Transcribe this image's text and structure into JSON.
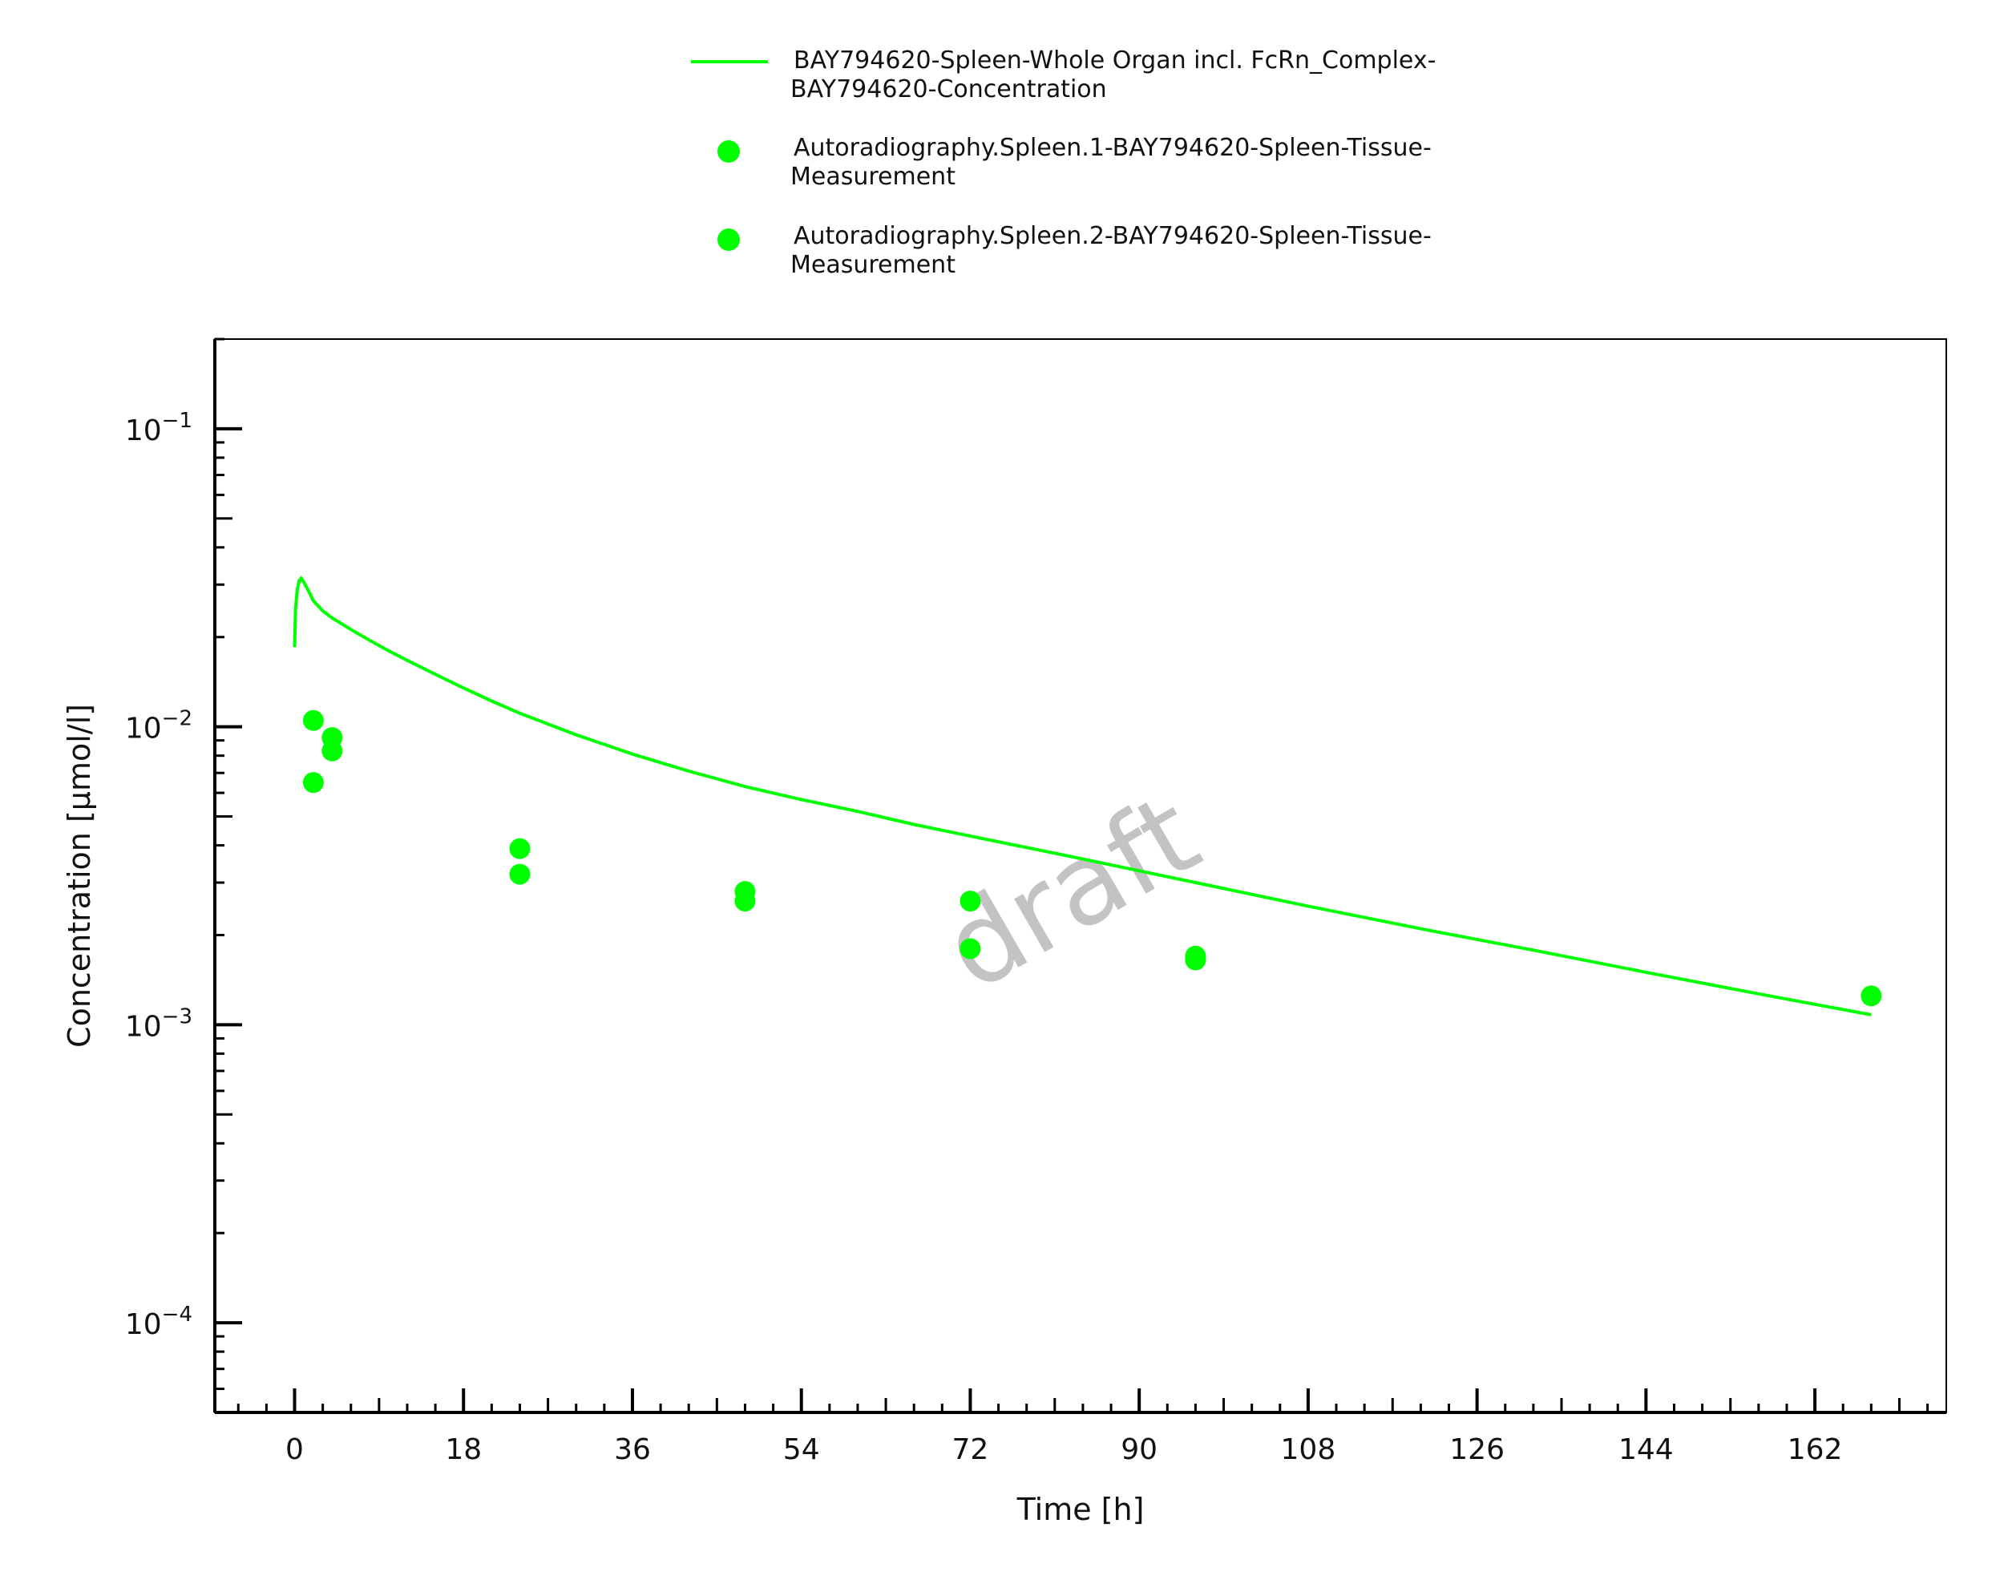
{
  "chart_data": {
    "type": "scatter",
    "xlabel": "Time [h]",
    "ylabel": "Concentration [µmol/l]",
    "xlim": [
      -8.5,
      176
    ],
    "ylim": [
      5e-05,
      0.2
    ],
    "yscale": "log",
    "grid": false,
    "legend_position": "top-center",
    "watermark": "draft",
    "x_ticks": [
      0,
      18,
      36,
      54,
      72,
      90,
      108,
      126,
      144,
      162
    ],
    "y_ticks": [
      {
        "value": 0.1,
        "base": "10",
        "exp": "−1"
      },
      {
        "value": 0.01,
        "base": "10",
        "exp": "−2"
      },
      {
        "value": 0.001,
        "base": "10",
        "exp": "−3"
      },
      {
        "value": 0.0001,
        "base": "10",
        "exp": "−4"
      }
    ],
    "series": [
      {
        "name": "BAY794620-Spleen-Whole Organ incl. FcRn_Complex-BAY794620-Concentration",
        "legend_lines": [
          "BAY794620-Spleen-Whole Organ incl. FcRn_Complex-",
          "BAY794620-Concentration"
        ],
        "kind": "line",
        "color": "#00ff00",
        "x": [
          0,
          0.1,
          0.3,
          0.5,
          0.7,
          1,
          1.5,
          2,
          3,
          4,
          6,
          8,
          10,
          12,
          15,
          18,
          21,
          24,
          30,
          36,
          42,
          48,
          54,
          60,
          66,
          72,
          84,
          96,
          108,
          120,
          132,
          144,
          156,
          168
        ],
        "y": [
          0.0185,
          0.025,
          0.029,
          0.031,
          0.0315,
          0.0305,
          0.0285,
          0.0265,
          0.0245,
          0.0232,
          0.0212,
          0.0195,
          0.018,
          0.0167,
          0.015,
          0.0135,
          0.0122,
          0.0111,
          0.0094,
          0.0081,
          0.0071,
          0.0063,
          0.0057,
          0.0052,
          0.0047,
          0.0043,
          0.0036,
          0.003,
          0.0025,
          0.0021,
          0.00178,
          0.0015,
          0.00127,
          0.00108
        ]
      },
      {
        "name": "Autoradiography.Spleen.1-BAY794620-Spleen-Tissue-Measurement",
        "legend_lines": [
          "Autoradiography.Spleen.1-BAY794620-Spleen-Tissue-",
          "Measurement"
        ],
        "kind": "scatter",
        "color": "#00ff00",
        "x": [
          2,
          4,
          24,
          48,
          72,
          96,
          168
        ],
        "y": [
          0.0105,
          0.0092,
          0.0039,
          0.0028,
          0.0026,
          0.0017,
          0.00125
        ]
      },
      {
        "name": "Autoradiography.Spleen.2-BAY794620-Spleen-Tissue-Measurement",
        "legend_lines": [
          "Autoradiography.Spleen.2-BAY794620-Spleen-Tissue-",
          "Measurement"
        ],
        "kind": "scatter",
        "color": "#00ff00",
        "x": [
          2,
          4,
          24,
          48,
          72,
          96
        ],
        "y": [
          0.0065,
          0.0083,
          0.0032,
          0.0026,
          0.0018,
          0.00165
        ]
      }
    ]
  }
}
